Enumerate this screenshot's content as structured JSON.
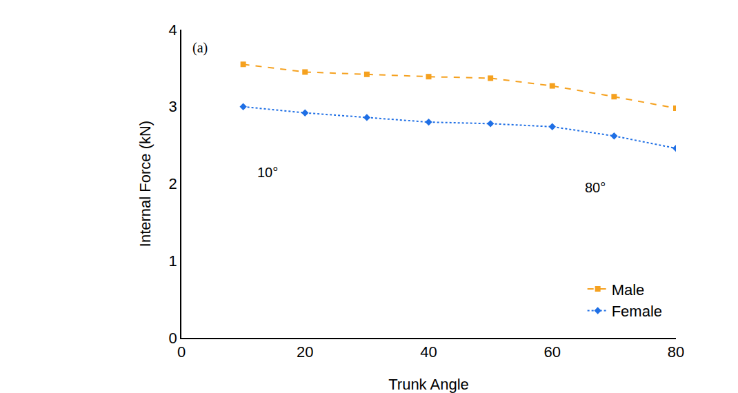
{
  "chart_data": {
    "type": "line",
    "panel_label": "(a)",
    "x_label": "Trunk Angle",
    "y_label": "Internal Force (kN)",
    "x": [
      10,
      20,
      30,
      40,
      50,
      60,
      70,
      80
    ],
    "series": [
      {
        "name": "Male",
        "color": "#f5a11f",
        "marker": "square",
        "line_style": "dash",
        "values": [
          3.55,
          3.45,
          3.42,
          3.39,
          3.37,
          3.27,
          3.13,
          2.98
        ]
      },
      {
        "name": "Female",
        "color": "#1f6fe5",
        "marker": "diamond",
        "line_style": "dot",
        "values": [
          3.0,
          2.92,
          2.86,
          2.8,
          2.78,
          2.74,
          2.62,
          2.46
        ]
      }
    ],
    "annotations": [
      {
        "text": "10°",
        "x": 14,
        "y": 2.15
      },
      {
        "text": "80°",
        "x": 67,
        "y": 1.95
      }
    ],
    "xlim": [
      0,
      80
    ],
    "xticks": [
      0,
      20,
      40,
      60,
      80
    ],
    "ylim": [
      0,
      4
    ],
    "yticks": [
      0,
      1,
      2,
      3,
      4
    ],
    "grid": false,
    "legend": "lower right"
  }
}
